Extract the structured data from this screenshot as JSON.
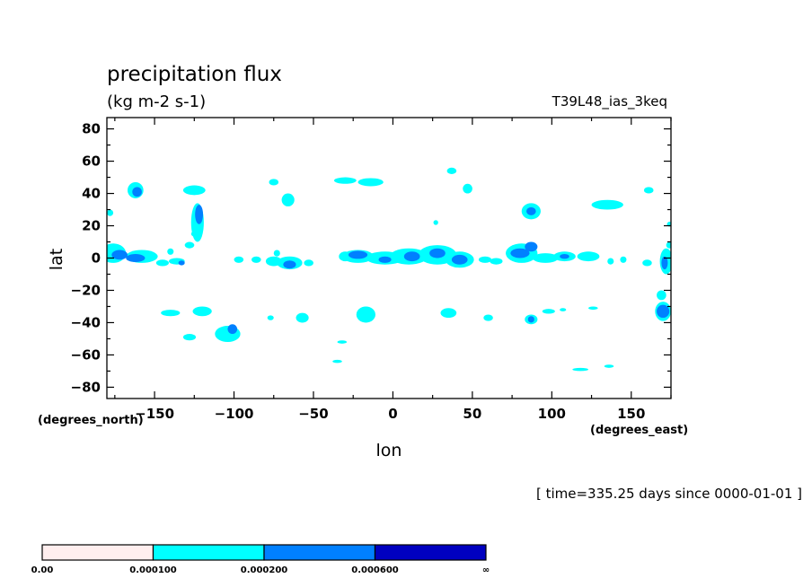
{
  "chart_data": {
    "type": "heatmap",
    "title": "precipitation flux",
    "subtitle": "(kg m-2 s-1)",
    "run_label": "T39L48_ias_3keq",
    "time_label": "[ time=335.25 days since 0000-01-01 ]",
    "xlabel": "lon",
    "ylabel": "lat",
    "x_units_label": "(degrees_east)",
    "y_units_label": "(degrees_north)",
    "xlim": [
      -180,
      175
    ],
    "ylim": [
      -87,
      87
    ],
    "x_ticks": [
      -150,
      -100,
      -50,
      0,
      50,
      100,
      150
    ],
    "y_ticks": [
      80,
      60,
      40,
      20,
      0,
      -20,
      -40,
      -60,
      -80
    ],
    "x_tick_labels": [
      "−150",
      "−100",
      "−50",
      "0",
      "50",
      "100",
      "150"
    ],
    "y_tick_labels": [
      "80",
      "60",
      "40",
      "20",
      "0",
      "−20",
      "−40",
      "−60",
      "−80"
    ],
    "colorbar": {
      "colors": [
        "#ffeeee",
        "#00ffff",
        "#0080ff",
        "#0000c0"
      ],
      "levels": [
        "0.00",
        "0.000100",
        "0.000200",
        "0.000600",
        "∞"
      ]
    },
    "regions": [
      {
        "lon": -176,
        "lat": 3,
        "rx": 8,
        "ry": 6,
        "level": 1
      },
      {
        "lon": -158,
        "lat": 1,
        "rx": 10,
        "ry": 4,
        "level": 1
      },
      {
        "lon": -172,
        "lat": 2,
        "rx": 5,
        "ry": 3,
        "level": 2
      },
      {
        "lon": -162,
        "lat": 0,
        "rx": 6,
        "ry": 2.5,
        "level": 2
      },
      {
        "lon": -178,
        "lat": 28,
        "rx": 2,
        "ry": 2,
        "level": 1
      },
      {
        "lon": -162,
        "lat": 42,
        "rx": 5,
        "ry": 5,
        "level": 1
      },
      {
        "lon": -161,
        "lat": 41,
        "rx": 3,
        "ry": 3,
        "level": 2
      },
      {
        "lon": -145,
        "lat": -3,
        "rx": 4,
        "ry": 2,
        "level": 1
      },
      {
        "lon": -136,
        "lat": -2,
        "rx": 5,
        "ry": 2,
        "level": 1
      },
      {
        "lon": -133,
        "lat": -3,
        "rx": 2,
        "ry": 1.5,
        "level": 2
      },
      {
        "lon": -140,
        "lat": 4,
        "rx": 2,
        "ry": 2,
        "level": 1
      },
      {
        "lon": -128,
        "lat": 8,
        "rx": 3,
        "ry": 2,
        "level": 1
      },
      {
        "lon": -125,
        "lat": 42,
        "rx": 7,
        "ry": 3,
        "level": 1
      },
      {
        "lon": -123,
        "lat": 22,
        "rx": 4,
        "ry": 12,
        "level": 1
      },
      {
        "lon": -122,
        "lat": 27,
        "rx": 2.5,
        "ry": 6,
        "level": 2
      },
      {
        "lon": -124,
        "lat": 15,
        "rx": 3,
        "ry": 2,
        "level": 1
      },
      {
        "lon": -120,
        "lat": -33,
        "rx": 6,
        "ry": 3,
        "level": 1
      },
      {
        "lon": -140,
        "lat": -34,
        "rx": 6,
        "ry": 2,
        "level": 1
      },
      {
        "lon": -128,
        "lat": -49,
        "rx": 4,
        "ry": 2,
        "level": 1
      },
      {
        "lon": -104,
        "lat": -47,
        "rx": 8,
        "ry": 5,
        "level": 1
      },
      {
        "lon": -101,
        "lat": -44,
        "rx": 3,
        "ry": 3,
        "level": 2
      },
      {
        "lon": -97,
        "lat": -1,
        "rx": 3,
        "ry": 2,
        "level": 1
      },
      {
        "lon": -86,
        "lat": -1,
        "rx": 3,
        "ry": 2,
        "level": 1
      },
      {
        "lon": -75,
        "lat": -2,
        "rx": 5,
        "ry": 3,
        "level": 1
      },
      {
        "lon": -65,
        "lat": -3,
        "rx": 8,
        "ry": 4,
        "level": 1
      },
      {
        "lon": -65,
        "lat": -4,
        "rx": 4,
        "ry": 2.5,
        "level": 2
      },
      {
        "lon": -53,
        "lat": -3,
        "rx": 3,
        "ry": 2,
        "level": 1
      },
      {
        "lon": -73,
        "lat": 3,
        "rx": 2,
        "ry": 2,
        "level": 1
      },
      {
        "lon": -75,
        "lat": 47,
        "rx": 3,
        "ry": 2,
        "level": 1
      },
      {
        "lon": -66,
        "lat": 36,
        "rx": 4,
        "ry": 4,
        "level": 1
      },
      {
        "lon": -57,
        "lat": -37,
        "rx": 4,
        "ry": 3,
        "level": 1
      },
      {
        "lon": -77,
        "lat": -37,
        "rx": 2,
        "ry": 1.5,
        "level": 1
      },
      {
        "lon": -30,
        "lat": 48,
        "rx": 7,
        "ry": 2,
        "level": 1
      },
      {
        "lon": -14,
        "lat": 47,
        "rx": 8,
        "ry": 2.5,
        "level": 1
      },
      {
        "lon": -32,
        "lat": -52,
        "rx": 3,
        "ry": 1,
        "level": 1
      },
      {
        "lon": -35,
        "lat": -64,
        "rx": 3,
        "ry": 1,
        "level": 1
      },
      {
        "lon": -17,
        "lat": -35,
        "rx": 6,
        "ry": 5,
        "level": 1
      },
      {
        "lon": -30,
        "lat": 1,
        "rx": 4,
        "ry": 3,
        "level": 1
      },
      {
        "lon": -22,
        "lat": 1,
        "rx": 10,
        "ry": 4,
        "level": 1
      },
      {
        "lon": -22,
        "lat": 2,
        "rx": 6,
        "ry": 2.5,
        "level": 2
      },
      {
        "lon": -5,
        "lat": 0,
        "rx": 12,
        "ry": 4,
        "level": 1
      },
      {
        "lon": -5,
        "lat": -1,
        "rx": 4,
        "ry": 2,
        "level": 2
      },
      {
        "lon": 10,
        "lat": 1,
        "rx": 12,
        "ry": 5,
        "level": 1
      },
      {
        "lon": 12,
        "lat": 1,
        "rx": 5,
        "ry": 3,
        "level": 2
      },
      {
        "lon": 28,
        "lat": 2,
        "rx": 12,
        "ry": 6,
        "level": 1
      },
      {
        "lon": 28,
        "lat": 3,
        "rx": 5,
        "ry": 3,
        "level": 2
      },
      {
        "lon": 42,
        "lat": -1,
        "rx": 9,
        "ry": 5,
        "level": 1
      },
      {
        "lon": 42,
        "lat": -1,
        "rx": 5,
        "ry": 3,
        "level": 2
      },
      {
        "lon": 37,
        "lat": 54,
        "rx": 3,
        "ry": 2,
        "level": 1
      },
      {
        "lon": 47,
        "lat": 43,
        "rx": 3,
        "ry": 3,
        "level": 1
      },
      {
        "lon": 27,
        "lat": 22,
        "rx": 1.5,
        "ry": 1.5,
        "level": 1
      },
      {
        "lon": 35,
        "lat": -34,
        "rx": 5,
        "ry": 3,
        "level": 1
      },
      {
        "lon": 60,
        "lat": -37,
        "rx": 3,
        "ry": 2,
        "level": 1
      },
      {
        "lon": 58,
        "lat": -1,
        "rx": 4,
        "ry": 2,
        "level": 1
      },
      {
        "lon": 65,
        "lat": -2,
        "rx": 4,
        "ry": 2,
        "level": 1
      },
      {
        "lon": 81,
        "lat": 3,
        "rx": 10,
        "ry": 6,
        "level": 1
      },
      {
        "lon": 80,
        "lat": 3,
        "rx": 6,
        "ry": 3,
        "level": 2
      },
      {
        "lon": 87,
        "lat": 7,
        "rx": 4,
        "ry": 3,
        "level": 2
      },
      {
        "lon": 96,
        "lat": 0,
        "rx": 8,
        "ry": 3,
        "level": 1
      },
      {
        "lon": 108,
        "lat": 1,
        "rx": 7,
        "ry": 3,
        "level": 1
      },
      {
        "lon": 108,
        "lat": 1,
        "rx": 3,
        "ry": 1.5,
        "level": 2
      },
      {
        "lon": 123,
        "lat": 1,
        "rx": 7,
        "ry": 3,
        "level": 1
      },
      {
        "lon": 137,
        "lat": -2,
        "rx": 2,
        "ry": 2,
        "level": 1
      },
      {
        "lon": 145,
        "lat": -1,
        "rx": 2,
        "ry": 2,
        "level": 1
      },
      {
        "lon": 87,
        "lat": 29,
        "rx": 6,
        "ry": 5,
        "level": 1
      },
      {
        "lon": 87,
        "lat": 29,
        "rx": 3,
        "ry": 2.5,
        "level": 2
      },
      {
        "lon": 87,
        "lat": -38,
        "rx": 4,
        "ry": 3,
        "level": 1
      },
      {
        "lon": 87,
        "lat": -38,
        "rx": 2,
        "ry": 2,
        "level": 2
      },
      {
        "lon": 98,
        "lat": -33,
        "rx": 4,
        "ry": 1.5,
        "level": 1
      },
      {
        "lon": 107,
        "lat": -32,
        "rx": 2,
        "ry": 1,
        "level": 1
      },
      {
        "lon": 126,
        "lat": -31,
        "rx": 3,
        "ry": 1,
        "level": 1
      },
      {
        "lon": 118,
        "lat": -69,
        "rx": 5,
        "ry": 1,
        "level": 1
      },
      {
        "lon": 136,
        "lat": -67,
        "rx": 3,
        "ry": 1,
        "level": 1
      },
      {
        "lon": 135,
        "lat": 33,
        "rx": 10,
        "ry": 3,
        "level": 1
      },
      {
        "lon": 161,
        "lat": 42,
        "rx": 3,
        "ry": 2,
        "level": 1
      },
      {
        "lon": 160,
        "lat": -3,
        "rx": 3,
        "ry": 2,
        "level": 1
      },
      {
        "lon": 172,
        "lat": -2,
        "rx": 4,
        "ry": 8,
        "level": 1
      },
      {
        "lon": 171,
        "lat": -3,
        "rx": 2,
        "ry": 4,
        "level": 2
      },
      {
        "lon": 174,
        "lat": 8,
        "rx": 2,
        "ry": 2,
        "level": 1
      },
      {
        "lon": 174,
        "lat": 21,
        "rx": 1.5,
        "ry": 1.5,
        "level": 1
      },
      {
        "lon": 170,
        "lat": -33,
        "rx": 5,
        "ry": 6,
        "level": 1
      },
      {
        "lon": 170,
        "lat": -33,
        "rx": 4,
        "ry": 4,
        "level": 2
      },
      {
        "lon": 169,
        "lat": -23,
        "rx": 3,
        "ry": 3,
        "level": 1
      }
    ]
  }
}
